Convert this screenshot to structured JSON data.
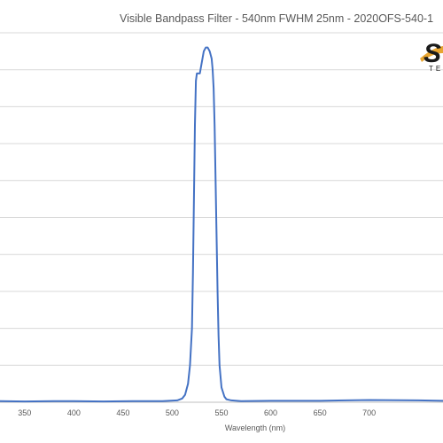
{
  "chart_data": {
    "type": "line",
    "title": "Visible Bandpass Filter - 540nm FWHM 25nm - 2020OFS-540-1",
    "xlabel": "Wavelength (nm)",
    "ylabel": "",
    "xlim": [
      325,
      775
    ],
    "ylim": [
      0,
      100
    ],
    "x_ticks": [
      "350",
      "400",
      "450",
      "500",
      "550",
      "600",
      "650",
      "700"
    ],
    "grid": true,
    "legend": "none",
    "series_color": "#4472c4",
    "series": [
      {
        "x": [
          325,
          350,
          380,
          400,
          430,
          460,
          490,
          505,
          510,
          513,
          516,
          518,
          520,
          521,
          522,
          523,
          524,
          525,
          526,
          527,
          528,
          530,
          532,
          534,
          536,
          538,
          539,
          540,
          541,
          542,
          543,
          544,
          545,
          546,
          547,
          548,
          550,
          553,
          555,
          560,
          570,
          600,
          650,
          700,
          750,
          775
        ],
        "y": [
          0.3,
          0.2,
          0.3,
          0.3,
          0.2,
          0.3,
          0.3,
          0.5,
          1,
          2,
          5,
          10,
          20,
          35,
          55,
          75,
          87,
          89,
          89,
          89,
          89,
          92,
          95,
          96,
          96,
          95,
          94,
          93,
          90,
          85,
          75,
          60,
          45,
          30,
          18,
          10,
          4,
          1.5,
          0.8,
          0.5,
          0.3,
          0.4,
          0.4,
          0.6,
          0.5,
          0.4
        ]
      }
    ]
  },
  "logo": {
    "mark": "S",
    "sub": "TE"
  }
}
